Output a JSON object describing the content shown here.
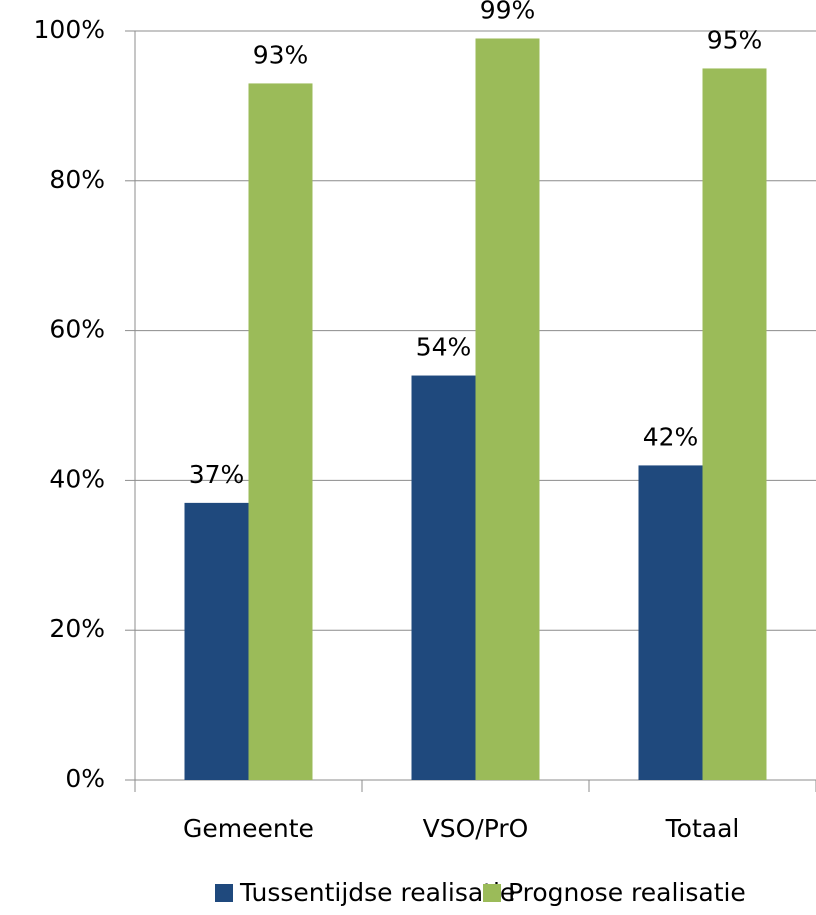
{
  "chart_data": {
    "type": "bar",
    "categories": [
      "Gemeente",
      "VSO/PrO",
      "Totaal"
    ],
    "series": [
      {
        "name": "Tussentijdse realisatie",
        "color": "#1f497d",
        "values": [
          37,
          54,
          42
        ],
        "value_labels": [
          "37%",
          "54%",
          "42%"
        ]
      },
      {
        "name": "Prognose realisatie",
        "color": "#9bbb59",
        "values": [
          93,
          99,
          95
        ],
        "value_labels": [
          "93%",
          "99%",
          "95%"
        ]
      }
    ],
    "ylim": [
      0,
      100
    ],
    "yticks": [
      {
        "value": 0,
        "label": "0%"
      },
      {
        "value": 20,
        "label": "20%"
      },
      {
        "value": 40,
        "label": "40%"
      },
      {
        "value": 60,
        "label": "60%"
      },
      {
        "value": 80,
        "label": "80%"
      },
      {
        "value": 100,
        "label": "100%"
      }
    ],
    "grid": true,
    "legend": "bottom"
  }
}
